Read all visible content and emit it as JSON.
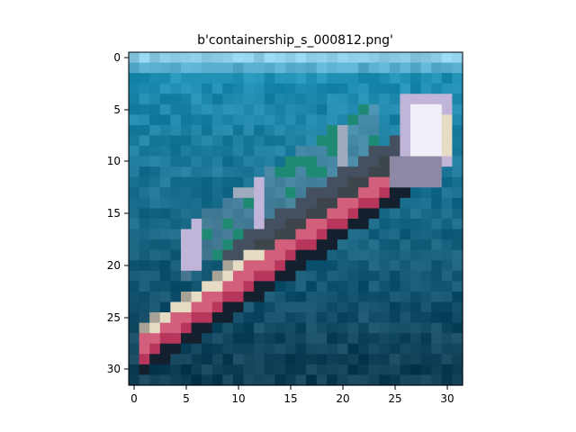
{
  "figure": {
    "title": "b'containership_s_000812.png'",
    "xaxis": {
      "ticks": [
        "0",
        "5",
        "10",
        "15",
        "20",
        "25",
        "30"
      ]
    },
    "yaxis": {
      "ticks": [
        "0",
        "5",
        "10",
        "15",
        "20",
        "25",
        "30"
      ]
    },
    "image": {
      "grid_size": [
        32,
        32
      ],
      "description_icon": "pixelated-container-ship-image",
      "palette": {
        "sky": "#8ecde6",
        "water_light": "#1f8fb4",
        "water": "#1a79a0",
        "water_dark": "#135a78",
        "deep": "#0f3e56",
        "hull_red": "#b8355c",
        "hull_pink": "#d2607c",
        "hull_dark": "#14202e",
        "deck_cream": "#e6dcc4",
        "superstructure": "#f0eef6",
        "lavender": "#c0b4d8",
        "mast_grey": "#9eaabe",
        "green": "#1f8a74"
      }
    }
  }
}
